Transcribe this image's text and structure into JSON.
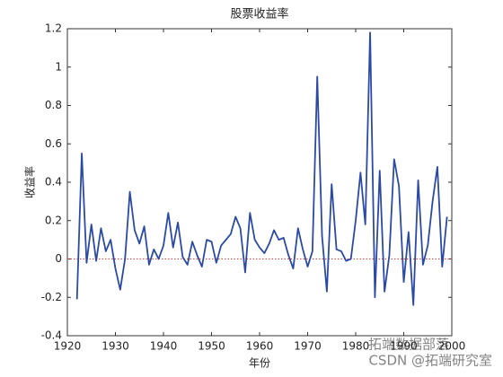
{
  "chart_data": {
    "type": "line",
    "title": "股票收益率",
    "xlabel": "年份",
    "ylabel": "收益率",
    "x": [
      1922,
      1923,
      1924,
      1925,
      1926,
      1927,
      1928,
      1929,
      1930,
      1931,
      1932,
      1933,
      1934,
      1935,
      1936,
      1937,
      1938,
      1939,
      1940,
      1941,
      1942,
      1943,
      1944,
      1945,
      1946,
      1947,
      1948,
      1949,
      1950,
      1951,
      1952,
      1953,
      1954,
      1955,
      1956,
      1957,
      1958,
      1959,
      1960,
      1961,
      1962,
      1963,
      1964,
      1965,
      1966,
      1967,
      1968,
      1969,
      1970,
      1971,
      1972,
      1973,
      1974,
      1975,
      1976,
      1977,
      1978,
      1979,
      1980,
      1981,
      1982,
      1983,
      1984,
      1985,
      1986,
      1987,
      1988,
      1989,
      1990,
      1991,
      1992,
      1993,
      1994,
      1995,
      1996,
      1997,
      1998,
      1999
    ],
    "series": [
      {
        "color": "#2b4aa6",
        "values": [
          -0.21,
          0.55,
          -0.02,
          0.18,
          -0.01,
          0.16,
          0.04,
          0.1,
          -0.05,
          -0.16,
          0.0,
          0.35,
          0.15,
          0.08,
          0.17,
          -0.03,
          0.05,
          0.0,
          0.07,
          0.24,
          0.06,
          0.19,
          0.01,
          -0.03,
          0.09,
          0.02,
          -0.04,
          0.1,
          0.09,
          -0.02,
          0.07,
          0.1,
          0.13,
          0.22,
          0.16,
          -0.07,
          0.24,
          0.1,
          0.06,
          0.03,
          0.08,
          0.15,
          0.1,
          0.11,
          0.02,
          -0.05,
          0.16,
          0.05,
          -0.04,
          0.04,
          0.95,
          0.12,
          -0.17,
          0.39,
          0.05,
          0.04,
          -0.01,
          0.0,
          0.2,
          0.45,
          0.18,
          1.18,
          -0.2,
          0.46,
          -0.17,
          0.02,
          0.52,
          0.38,
          -0.12,
          0.14,
          -0.24,
          0.41,
          -0.03,
          0.07,
          0.3,
          0.48,
          -0.04,
          0.22
        ]
      }
    ],
    "hline": {
      "value": 0,
      "color": "#d04040"
    },
    "xlim": [
      1920,
      2000
    ],
    "xticks": [
      1920,
      1930,
      1940,
      1950,
      1960,
      1970,
      1980,
      1990,
      2000
    ],
    "ylim": [
      -0.4,
      1.2
    ],
    "yticks": [
      -0.4,
      -0.2,
      0,
      0.2,
      0.4,
      0.6,
      0.8,
      1,
      1.2
    ]
  },
  "watermark": [
    "拓端数据部落",
    "CSDN @拓端研究室"
  ]
}
